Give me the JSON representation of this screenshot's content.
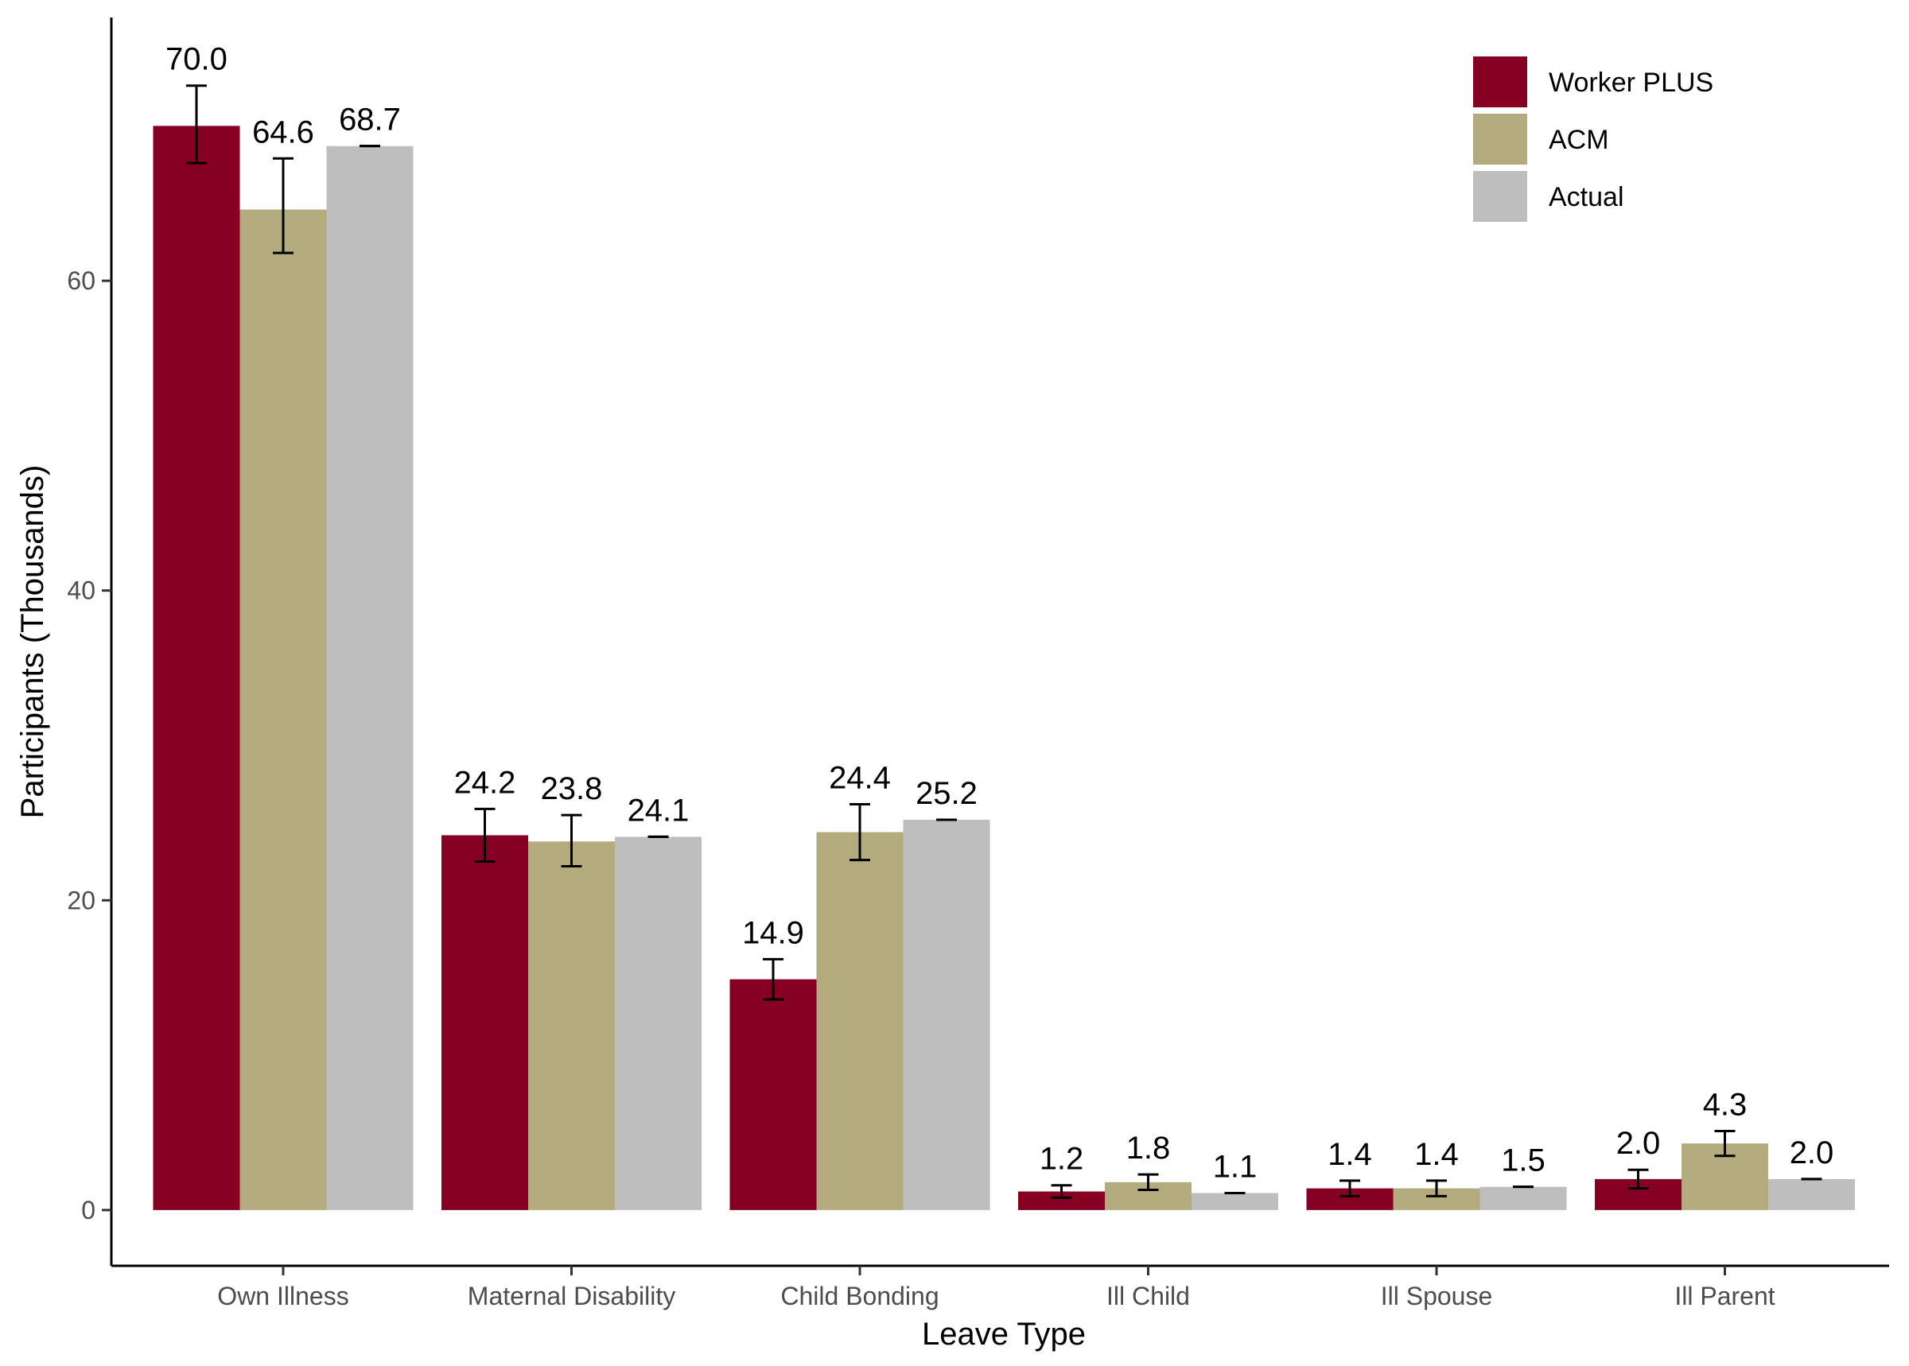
{
  "chart_data": {
    "type": "bar",
    "title": "",
    "xlabel": "Leave Type",
    "ylabel": "Participants (Thousands)",
    "ylim": [
      -3.6,
      77
    ],
    "yticks": [
      0,
      20,
      40,
      60
    ],
    "grid": false,
    "legend_position": "top-right",
    "categories": [
      "Own Illness",
      "Maternal Disability",
      "Child Bonding",
      "Ill Child",
      "Ill Spouse",
      "Ill Parent"
    ],
    "series": [
      {
        "name": "Worker PLUS",
        "color": "#860024",
        "values": [
          70.0,
          24.2,
          14.9,
          1.2,
          1.4,
          2.0
        ],
        "labels": [
          "70.0",
          "24.2",
          "14.9",
          "1.2",
          "1.4",
          "2.0"
        ],
        "error_low": [
          67.6,
          22.5,
          13.6,
          0.8,
          0.9,
          1.4
        ],
        "error_high": [
          72.6,
          25.9,
          16.2,
          1.6,
          1.9,
          2.6
        ]
      },
      {
        "name": "ACM",
        "color": "#B3AA7E",
        "values": [
          64.6,
          23.8,
          24.4,
          1.8,
          1.4,
          4.3
        ],
        "labels": [
          "64.6",
          "23.8",
          "24.4",
          "1.8",
          "1.4",
          "4.3"
        ],
        "error_low": [
          61.8,
          22.2,
          22.6,
          1.3,
          0.9,
          3.5
        ],
        "error_high": [
          67.9,
          25.5,
          26.2,
          2.3,
          1.9,
          5.1
        ]
      },
      {
        "name": "Actual",
        "color": "#BEBEBE",
        "values": [
          68.7,
          24.1,
          25.2,
          1.1,
          1.5,
          2.0
        ],
        "labels": [
          "68.7",
          "24.1",
          "25.2",
          "1.1",
          "1.5",
          "2.0"
        ],
        "error_low": [
          68.7,
          24.1,
          25.2,
          1.1,
          1.5,
          2.0
        ],
        "error_high": [
          68.7,
          24.1,
          25.2,
          1.1,
          1.5,
          2.0
        ]
      }
    ]
  }
}
